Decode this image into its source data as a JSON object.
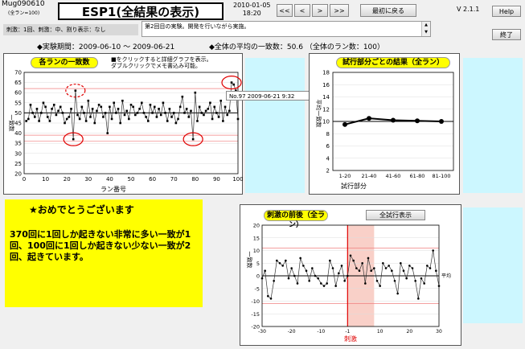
{
  "header": {
    "app_id": "Mug090610",
    "run_note": "(全ラン=100)",
    "title": "ESP1(全結果の表示)",
    "date": "2010-01-05",
    "time": "18:20",
    "nav_first": "<<",
    "nav_prev": "<",
    "nav_next": ">",
    "nav_last": ">>",
    "back_to_start": "最初に戻る",
    "version": "V 2.1.1",
    "help": "Help",
    "exit": "終了",
    "settings": "刺激：1回、刺激：中、割り表示：なし",
    "memo": "第2回目の実験。開発を行いながら実施。"
  },
  "summary": {
    "period": "◆実験期間：2009-06-10 ～ 2009-06-21",
    "overall": "◆全体の平均の一致数：50.6 （全体のラン数：100）"
  },
  "chart_runs": {
    "title": "各ランの一致数",
    "hint_line1": "■をクリックすると詳細グラフを表示。",
    "hint_line2": "ダブルクリックでメモ書込み可能。",
    "tooltip": "No.97 2009-06-21  9:32",
    "ylabel": "一致数",
    "xlabel": "ラン番号",
    "yticks": [
      "70",
      "65",
      "60",
      "55",
      "50",
      "45",
      "40",
      "35",
      "30",
      "25",
      "20"
    ],
    "xticks": [
      "0",
      "10",
      "20",
      "30",
      "40",
      "50",
      "60",
      "70",
      "80",
      "90",
      "100"
    ]
  },
  "chart_blocks": {
    "title": "試行部分ごとの結果（全ラン）",
    "ylabel": "平均一致数",
    "xlabel": "試行部分",
    "yticks": [
      "18",
      "16",
      "14",
      "12",
      "10",
      "8",
      "6",
      "4",
      "2"
    ],
    "xticks": [
      "1-20",
      "21-40",
      "41-60",
      "61-80",
      "81-100"
    ]
  },
  "congrats": {
    "title": "★おめでとうございます",
    "body": "370回に1回しか起きない非常に多い一致が1回、100回に1回しか起きない少ない一致が2回、起きています。"
  },
  "chart_stim": {
    "title": "刺激の前後（全ラン）",
    "all_trials_button": "全試行表示",
    "ylabel": "一致数",
    "xlabel": "刺激",
    "mean_label": "平均",
    "yticks": [
      "20",
      "15",
      "10",
      "5",
      "0",
      "-5",
      "-10",
      "-15",
      "-20"
    ],
    "xticks": [
      "-30",
      "-20",
      "-10",
      "-1",
      "10",
      "20",
      "30"
    ]
  },
  "colors": {
    "background": "#f0f0f0",
    "highlight_yellow": "#ffff00",
    "cyan_box": "#ccf7ff",
    "marker_red": "#e00000",
    "stim_band": "#f9d0c8"
  },
  "chart_data": [
    {
      "type": "line",
      "title": "各ランの一致数",
      "xlabel": "ラン番号",
      "ylabel": "一致数",
      "xlim": [
        0,
        100
      ],
      "ylim": [
        20,
        70
      ],
      "reference_lines": [
        50,
        62,
        39,
        36
      ],
      "series": [
        {
          "values": [
            46,
            47,
            54,
            50,
            48,
            52,
            46,
            50,
            55,
            53,
            48,
            46,
            52,
            54,
            49,
            51,
            53,
            50,
            45,
            47,
            48,
            52,
            37,
            61,
            49,
            47,
            53,
            50,
            46,
            56,
            48,
            52,
            45,
            51,
            54,
            53,
            48,
            50,
            40,
            53,
            47,
            55,
            50,
            52,
            45,
            56,
            49,
            51,
            47,
            54,
            53,
            49,
            50,
            52,
            55,
            50,
            48,
            46,
            54,
            50,
            53,
            48,
            52,
            49,
            55,
            50,
            46,
            52,
            48,
            50,
            45,
            47,
            53,
            58,
            50,
            52,
            48,
            51,
            37,
            60,
            46,
            53,
            50,
            49,
            51,
            52,
            55,
            47,
            53,
            50,
            48,
            56,
            46,
            53,
            49,
            51,
            65,
            64,
            61,
            47
          ]
        }
      ]
    },
    {
      "type": "line",
      "title": "試行部分ごとの結果（全ラン）",
      "xlabel": "試行部分",
      "ylabel": "平均一致数",
      "categories": [
        "1-20",
        "21-40",
        "41-60",
        "61-80",
        "81-100"
      ],
      "ylim": [
        2,
        18
      ],
      "reference_lines": [
        10
      ],
      "series": [
        {
          "values": [
            9.5,
            10.5,
            10.2,
            10.1,
            10.0
          ]
        }
      ]
    },
    {
      "type": "line",
      "title": "刺激の前後（全ラン）",
      "xlabel": "刺激",
      "ylabel": "一致数",
      "xlim": [
        -30,
        30
      ],
      "ylim": [
        -20,
        20
      ],
      "reference_lines": [
        0,
        11,
        -11
      ],
      "series": [
        {
          "x": [
            -30,
            -29,
            -28,
            -27,
            -26,
            -25,
            -24,
            -23,
            -22,
            -21,
            -20,
            -19,
            -18,
            -17,
            -16,
            -15,
            -14,
            -13,
            -12,
            -11,
            -10,
            -9,
            -8,
            -7,
            -6,
            -5,
            -4,
            -3,
            -2,
            -1,
            0,
            1,
            2,
            3,
            4,
            5,
            6,
            7,
            8,
            9,
            10,
            11,
            12,
            13,
            14,
            15,
            16,
            17,
            18,
            19,
            20,
            21,
            22,
            23,
            24,
            25,
            26,
            27,
            28,
            29,
            30
          ],
          "y": [
            -1,
            2,
            -8,
            -9,
            -2,
            6,
            5,
            4,
            6,
            -1,
            3,
            0,
            -3,
            7,
            4,
            2,
            -2,
            3,
            0,
            -1,
            -3,
            -4,
            -3,
            6,
            3,
            -4,
            1,
            4,
            -2,
            0,
            8,
            6,
            3,
            2,
            5,
            -3,
            7,
            2,
            3,
            -2,
            -4,
            5,
            3,
            4,
            2,
            -2,
            -7,
            5,
            2,
            -1,
            4,
            3,
            -2,
            -9,
            -1,
            -3,
            4,
            3,
            10,
            2,
            -4
          ]
        }
      ]
    }
  ]
}
